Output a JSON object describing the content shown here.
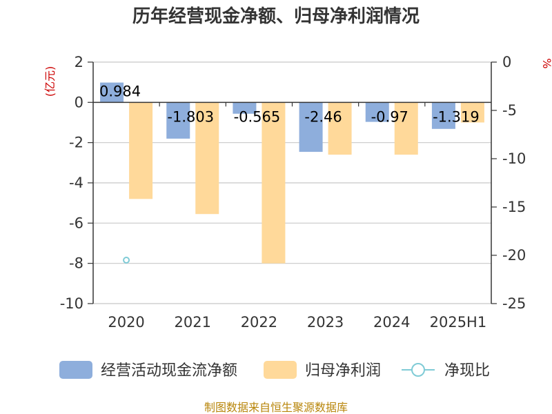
{
  "chart_data": {
    "type": "bar",
    "title": "历年经营现金净额、归母净利润情况",
    "categories": [
      "2020",
      "2021",
      "2022",
      "2023",
      "2024",
      "2025H1"
    ],
    "left_axis": {
      "unit": "(亿元)",
      "range": [
        -10,
        2
      ],
      "ticks": [
        "2",
        "0",
        "-2",
        "-4",
        "-6",
        "-8",
        "-10"
      ]
    },
    "right_axis": {
      "unit": "%",
      "range": [
        -25,
        0
      ],
      "ticks": [
        "0",
        "-5",
        "-10",
        "-15",
        "-20",
        "-25"
      ]
    },
    "series": [
      {
        "name": "经营活动现金流净额",
        "axis": "left",
        "kind": "bar",
        "color": "#8eaedc",
        "values": [
          0.984,
          -1.803,
          -0.565,
          -2.46,
          -0.97,
          -1.319
        ],
        "labels": [
          "0.984",
          "-1.803",
          "-0.565",
          "-2.46",
          "-0.97",
          "-1.319"
        ]
      },
      {
        "name": "归母净利润",
        "axis": "left",
        "kind": "bar",
        "color": "#ffd99a",
        "values": [
          -4.8,
          -5.55,
          -8.0,
          -2.6,
          -2.6,
          -1.0
        ]
      },
      {
        "name": "净现比",
        "axis": "right",
        "kind": "line",
        "color": "#7fcbd6",
        "values": [
          -20.5,
          null,
          null,
          null,
          null,
          null
        ]
      }
    ],
    "grid": true
  },
  "footer": {
    "source": "制图数据来自恒生聚源数据库"
  }
}
